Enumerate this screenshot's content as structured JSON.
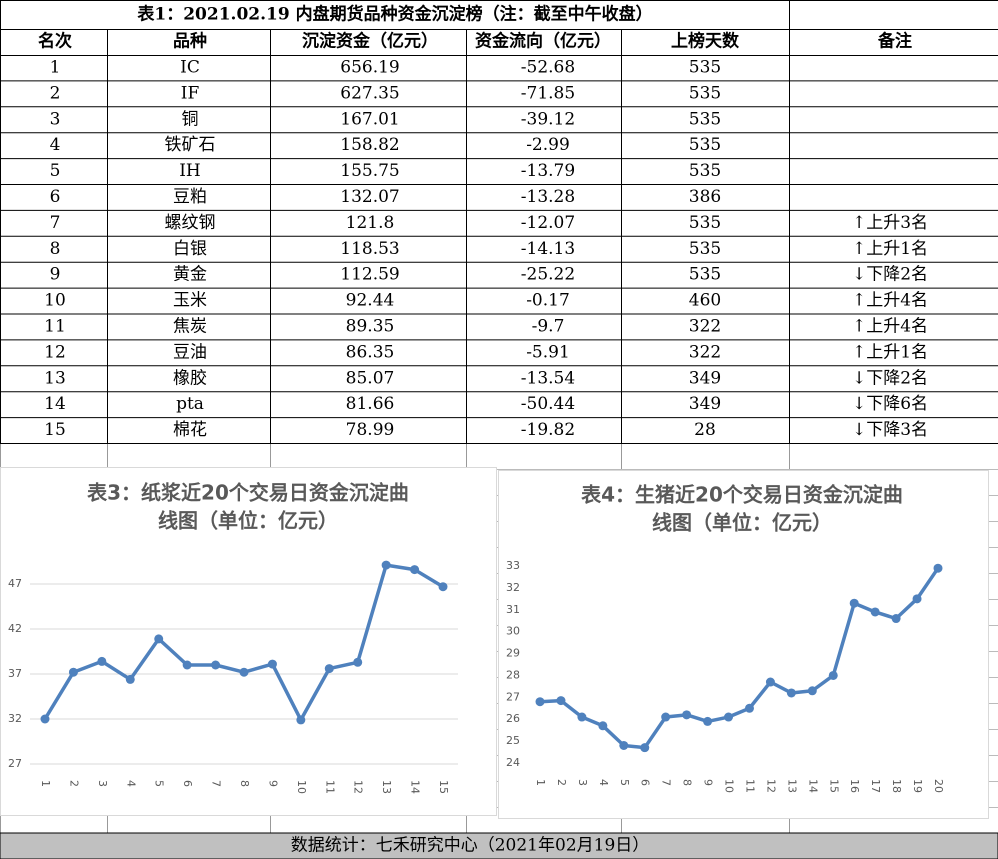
{
  "table": {
    "title": "表1：2021.02.19 内盘期货品种资金沉淀榜（注：截至中午收盘）",
    "header": [
      "名次",
      "品种",
      "沉淀资金（亿元）",
      "资金流向（亿元）",
      "上榜天数",
      "备注"
    ],
    "rows": [
      [
        "1",
        "IC",
        "656.19",
        "-52.68",
        "535",
        ""
      ],
      [
        "2",
        "IF",
        "627.35",
        "-71.85",
        "535",
        ""
      ],
      [
        "3",
        "铜",
        "167.01",
        "-39.12",
        "535",
        ""
      ],
      [
        "4",
        "铁矿石",
        "158.82",
        "-2.99",
        "535",
        ""
      ],
      [
        "5",
        "IH",
        "155.75",
        "-13.79",
        "535",
        ""
      ],
      [
        "6",
        "豆粕",
        "132.07",
        "-13.28",
        "386",
        ""
      ],
      [
        "7",
        "螺纹钢",
        "121.8",
        "-12.07",
        "535",
        "↑上升3名"
      ],
      [
        "8",
        "白银",
        "118.53",
        "-14.13",
        "535",
        "↑上升1名"
      ],
      [
        "9",
        "黄金",
        "112.59",
        "-25.22",
        "535",
        "↓下降2名"
      ],
      [
        "10",
        "玉米",
        "92.44",
        "-0.17",
        "460",
        "↑上升4名"
      ],
      [
        "11",
        "焦炭",
        "89.35",
        "-9.7",
        "322",
        "↑上升4名"
      ],
      [
        "12",
        "豆油",
        "86.35",
        "-5.91",
        "322",
        "↑上升1名"
      ],
      [
        "13",
        "橡胶",
        "85.07",
        "-13.54",
        "349",
        "↓下降2名"
      ],
      [
        "14",
        "pta",
        "81.66",
        "-50.44",
        "349",
        "↓下降6名"
      ],
      [
        "15",
        "棉花",
        "78.99",
        "-19.82",
        "28",
        "↓下降3名"
      ]
    ]
  },
  "chart_data": [
    {
      "type": "line",
      "title_lines": [
        "表3：纸浆近20个交易日资金沉淀曲",
        "线图（单位：亿元）"
      ],
      "categories": [
        "1",
        "2",
        "3",
        "4",
        "5",
        "6",
        "7",
        "8",
        "9",
        "10",
        "11",
        "12",
        "13",
        "14",
        "15"
      ],
      "values": [
        32.0,
        37.2,
        38.4,
        36.4,
        40.9,
        38.0,
        38.0,
        37.2,
        38.1,
        31.9,
        37.6,
        38.3,
        49.1,
        48.6,
        46.7
      ],
      "color": "#4f81bd",
      "ylim": [
        27,
        50
      ],
      "yticks": [
        27,
        32,
        37,
        42,
        47
      ],
      "grid": true
    },
    {
      "type": "line",
      "title_lines": [
        "表4：生猪近20个交易日资金沉淀曲",
        "线图（单位：亿元）"
      ],
      "categories": [
        "1",
        "2",
        "3",
        "4",
        "5",
        "6",
        "7",
        "8",
        "9",
        "10",
        "11",
        "12",
        "13",
        "14",
        "15",
        "16",
        "17",
        "18",
        "19",
        "20"
      ],
      "values": [
        26.8,
        26.85,
        26.1,
        25.7,
        24.8,
        24.7,
        26.1,
        26.2,
        25.9,
        26.1,
        26.5,
        27.7,
        27.2,
        27.3,
        28.0,
        31.3,
        30.9,
        30.6,
        31.5,
        32.9
      ],
      "color": "#4f81bd",
      "ylim": [
        24,
        33
      ],
      "yticks": [
        24,
        25,
        26,
        27,
        28,
        29,
        30,
        31,
        32,
        33
      ],
      "grid": false
    }
  ],
  "footer": "数据统计：七禾研究中心（2021年02月19日）"
}
